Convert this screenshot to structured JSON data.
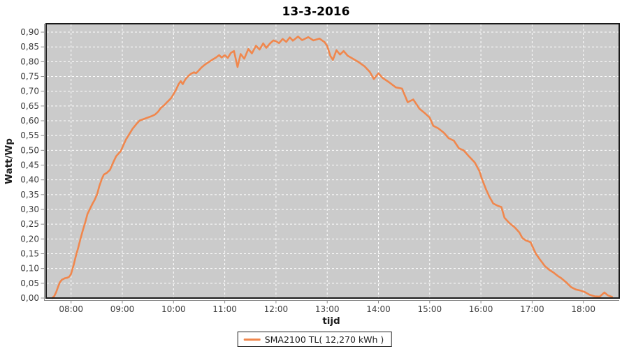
{
  "colors": {
    "series_line": "#F0874D",
    "plot_background": "#CBCBCB",
    "gridline": "#FFFFFF",
    "plot_border": "#1A1A1A",
    "axis_line": "#8C8C8C",
    "tick": "#8C8C8C",
    "tick_label": "#3D3D3D",
    "title": "#000000"
  },
  "legend": {
    "label": "SMA2100 TL( 12,270 kWh )"
  },
  "chart_data": {
    "type": "line",
    "title": "13-3-2016",
    "xlabel": "tijd",
    "ylabel": "Watt/Wp",
    "grid": "white dashed gridlines on gray plot background",
    "legend_position": "bottom-center",
    "xlim_hours": [
      7.45,
      18.69
    ],
    "ylim": [
      0.0,
      0.928
    ],
    "x_tick_hours": [
      8,
      9,
      10,
      11,
      12,
      13,
      14,
      15,
      16,
      17,
      18
    ],
    "x_tick_labels": [
      "08:00",
      "09:00",
      "10:00",
      "11:00",
      "12:00",
      "13:00",
      "14:00",
      "15:00",
      "16:00",
      "17:00",
      "18:00"
    ],
    "y_tick_values": [
      0.0,
      0.05,
      0.1,
      0.15,
      0.2,
      0.25,
      0.3,
      0.35,
      0.4,
      0.45,
      0.5,
      0.55,
      0.6,
      0.65,
      0.7,
      0.75,
      0.8,
      0.85,
      0.9
    ],
    "y_tick_labels": [
      "0,00",
      "0,05",
      "0,10",
      "0,15",
      "0,20",
      "0,25",
      "0,30",
      "0,35",
      "0,40",
      "0,45",
      "0,50",
      "0,55",
      "0,60",
      "0,65",
      "0,70",
      "0,75",
      "0,80",
      "0,85",
      "0,90"
    ],
    "series": [
      {
        "name": "SMA2100 TL( 12,270 kWh )",
        "color": "#F0874D",
        "points_format": "[hour_decimal, watt_per_wp]",
        "points": [
          [
            7.63,
            0.0
          ],
          [
            7.67,
            0.006
          ],
          [
            7.71,
            0.02
          ],
          [
            7.75,
            0.04
          ],
          [
            7.78,
            0.053
          ],
          [
            7.82,
            0.062
          ],
          [
            7.88,
            0.067
          ],
          [
            7.93,
            0.069
          ],
          [
            7.97,
            0.073
          ],
          [
            8.0,
            0.082
          ],
          [
            8.05,
            0.112
          ],
          [
            8.09,
            0.14
          ],
          [
            8.14,
            0.171
          ],
          [
            8.18,
            0.198
          ],
          [
            8.23,
            0.23
          ],
          [
            8.27,
            0.252
          ],
          [
            8.32,
            0.285
          ],
          [
            8.37,
            0.302
          ],
          [
            8.42,
            0.32
          ],
          [
            8.46,
            0.332
          ],
          [
            8.51,
            0.352
          ],
          [
            8.55,
            0.378
          ],
          [
            8.6,
            0.403
          ],
          [
            8.64,
            0.418
          ],
          [
            8.7,
            0.424
          ],
          [
            8.76,
            0.434
          ],
          [
            8.82,
            0.458
          ],
          [
            8.88,
            0.48
          ],
          [
            8.93,
            0.49
          ],
          [
            8.97,
            0.497
          ],
          [
            9.0,
            0.509
          ],
          [
            9.07,
            0.536
          ],
          [
            9.13,
            0.553
          ],
          [
            9.2,
            0.573
          ],
          [
            9.28,
            0.59
          ],
          [
            9.34,
            0.601
          ],
          [
            9.42,
            0.606
          ],
          [
            9.5,
            0.611
          ],
          [
            9.58,
            0.616
          ],
          [
            9.64,
            0.621
          ],
          [
            9.7,
            0.631
          ],
          [
            9.75,
            0.643
          ],
          [
            9.82,
            0.653
          ],
          [
            9.88,
            0.664
          ],
          [
            9.95,
            0.676
          ],
          [
            10.0,
            0.69
          ],
          [
            10.05,
            0.706
          ],
          [
            10.1,
            0.724
          ],
          [
            10.14,
            0.734
          ],
          [
            10.18,
            0.724
          ],
          [
            10.23,
            0.74
          ],
          [
            10.29,
            0.752
          ],
          [
            10.34,
            0.759
          ],
          [
            10.4,
            0.764
          ],
          [
            10.44,
            0.761
          ],
          [
            10.49,
            0.77
          ],
          [
            10.55,
            0.781
          ],
          [
            10.62,
            0.791
          ],
          [
            10.69,
            0.799
          ],
          [
            10.76,
            0.807
          ],
          [
            10.83,
            0.814
          ],
          [
            10.89,
            0.822
          ],
          [
            10.94,
            0.814
          ],
          [
            11.0,
            0.822
          ],
          [
            11.06,
            0.813
          ],
          [
            11.12,
            0.83
          ],
          [
            11.18,
            0.836
          ],
          [
            11.25,
            0.782
          ],
          [
            11.31,
            0.826
          ],
          [
            11.38,
            0.81
          ],
          [
            11.46,
            0.843
          ],
          [
            11.53,
            0.828
          ],
          [
            11.61,
            0.854
          ],
          [
            11.68,
            0.841
          ],
          [
            11.75,
            0.862
          ],
          [
            11.81,
            0.847
          ],
          [
            11.88,
            0.861
          ],
          [
            11.95,
            0.872
          ],
          [
            12.0,
            0.869
          ],
          [
            12.06,
            0.863
          ],
          [
            12.13,
            0.877
          ],
          [
            12.2,
            0.867
          ],
          [
            12.27,
            0.882
          ],
          [
            12.33,
            0.871
          ],
          [
            12.43,
            0.885
          ],
          [
            12.51,
            0.873
          ],
          [
            12.63,
            0.883
          ],
          [
            12.73,
            0.872
          ],
          [
            12.85,
            0.878
          ],
          [
            12.95,
            0.866
          ],
          [
            13.0,
            0.853
          ],
          [
            13.06,
            0.82
          ],
          [
            13.11,
            0.806
          ],
          [
            13.18,
            0.839
          ],
          [
            13.25,
            0.824
          ],
          [
            13.32,
            0.836
          ],
          [
            13.4,
            0.82
          ],
          [
            13.48,
            0.812
          ],
          [
            13.61,
            0.799
          ],
          [
            13.73,
            0.784
          ],
          [
            13.83,
            0.766
          ],
          [
            13.91,
            0.741
          ],
          [
            14.0,
            0.761
          ],
          [
            14.08,
            0.745
          ],
          [
            14.21,
            0.73
          ],
          [
            14.34,
            0.713
          ],
          [
            14.46,
            0.709
          ],
          [
            14.57,
            0.663
          ],
          [
            14.68,
            0.672
          ],
          [
            14.8,
            0.641
          ],
          [
            14.91,
            0.625
          ],
          [
            15.0,
            0.611
          ],
          [
            15.07,
            0.583
          ],
          [
            15.17,
            0.574
          ],
          [
            15.28,
            0.559
          ],
          [
            15.37,
            0.541
          ],
          [
            15.47,
            0.533
          ],
          [
            15.57,
            0.507
          ],
          [
            15.66,
            0.5
          ],
          [
            15.77,
            0.479
          ],
          [
            15.88,
            0.459
          ],
          [
            15.97,
            0.43
          ],
          [
            16.02,
            0.403
          ],
          [
            16.1,
            0.368
          ],
          [
            16.16,
            0.345
          ],
          [
            16.24,
            0.32
          ],
          [
            16.33,
            0.312
          ],
          [
            16.4,
            0.308
          ],
          [
            16.46,
            0.272
          ],
          [
            16.55,
            0.255
          ],
          [
            16.66,
            0.239
          ],
          [
            16.75,
            0.222
          ],
          [
            16.81,
            0.203
          ],
          [
            16.88,
            0.195
          ],
          [
            16.97,
            0.189
          ],
          [
            17.0,
            0.177
          ],
          [
            17.07,
            0.151
          ],
          [
            17.15,
            0.131
          ],
          [
            17.25,
            0.108
          ],
          [
            17.33,
            0.096
          ],
          [
            17.42,
            0.086
          ],
          [
            17.5,
            0.075
          ],
          [
            17.57,
            0.067
          ],
          [
            17.68,
            0.051
          ],
          [
            17.76,
            0.037
          ],
          [
            17.85,
            0.029
          ],
          [
            17.95,
            0.025
          ],
          [
            18.03,
            0.02
          ],
          [
            18.12,
            0.011
          ],
          [
            18.22,
            0.006
          ],
          [
            18.32,
            0.005
          ],
          [
            18.41,
            0.019
          ],
          [
            18.48,
            0.009
          ],
          [
            18.56,
            0.004
          ]
        ]
      }
    ]
  }
}
